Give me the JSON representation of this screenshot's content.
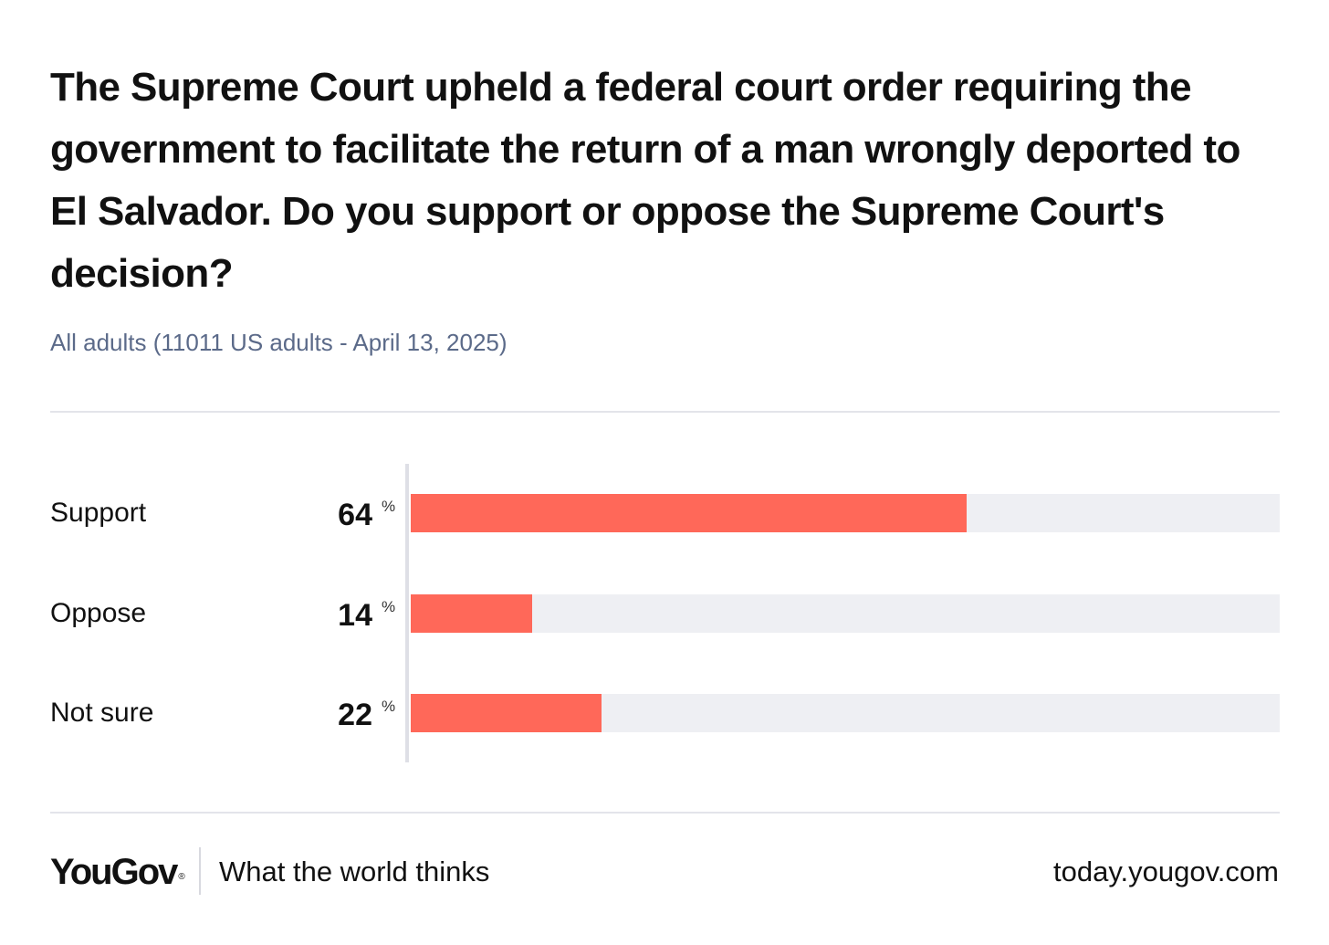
{
  "chart_data": {
    "type": "bar",
    "orientation": "horizontal",
    "title": "The Supreme Court upheld a federal court order requiring the government to facilitate the return of a man wrongly deported to El Salvador. Do you support or oppose the Supreme Court's decision?",
    "subtitle": "All adults (11011 US adults - April 13, 2025)",
    "categories": [
      "Support",
      "Oppose",
      "Not sure"
    ],
    "values": [
      64,
      14,
      22
    ],
    "unit": "%",
    "xlim": [
      0,
      100
    ],
    "grid": false,
    "bar_color": "#ff6859",
    "track_color": "#eeeff3"
  },
  "footer": {
    "logo": "YouGov",
    "logo_mark": "®",
    "tagline": "What the world thinks",
    "site": "today.yougov.com"
  }
}
